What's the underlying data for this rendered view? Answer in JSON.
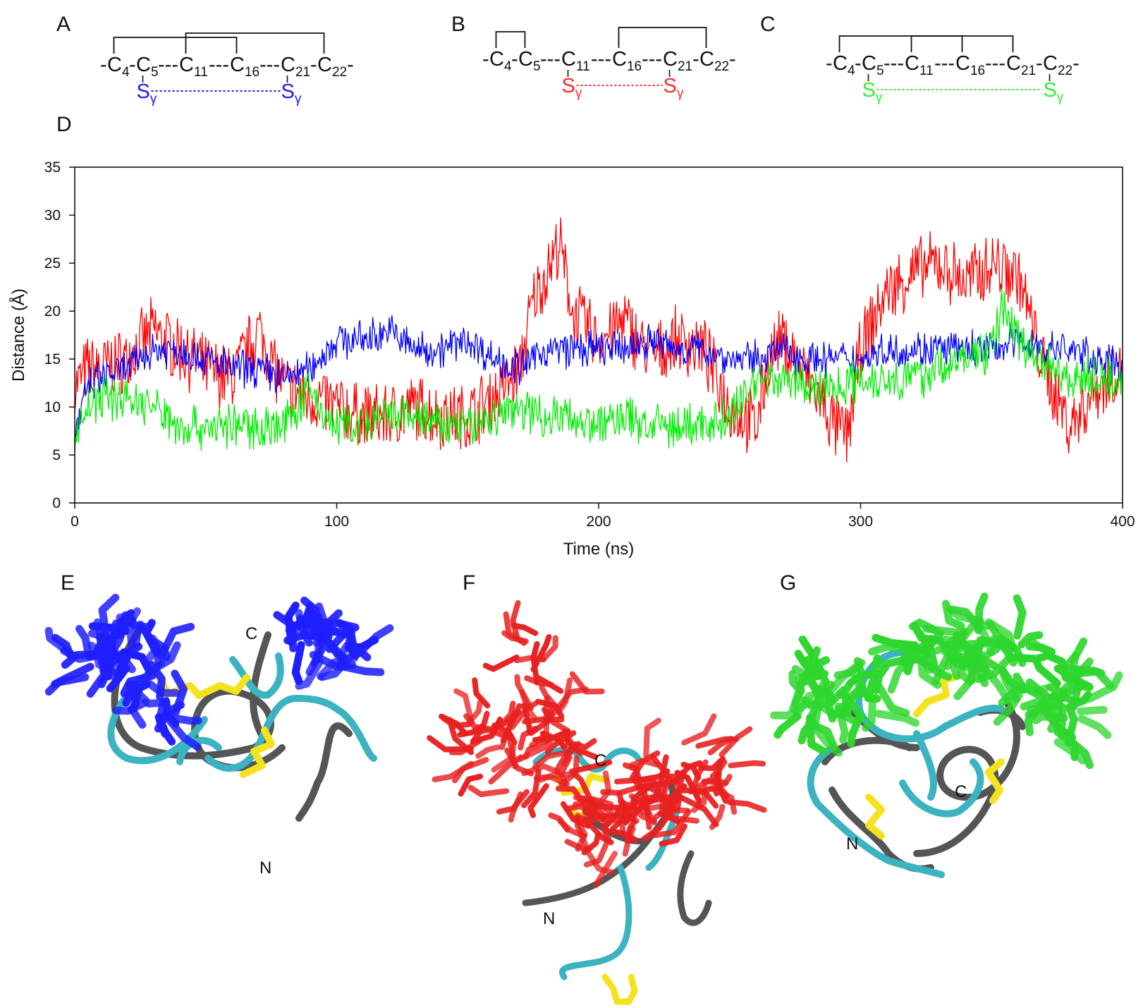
{
  "panel_labels": {
    "a": "A",
    "b": "B",
    "c": "C",
    "d": "D",
    "e": "E",
    "f": "F",
    "g": "G"
  },
  "connectivity": {
    "residue_prefix": "C",
    "residues": [
      "4",
      "5",
      "11",
      "16",
      "21",
      "22"
    ],
    "sulfur_symbol": "S",
    "sulfur_subscript": "γ",
    "dash_lead": "-",
    "dash_single": "-",
    "dash_triple": "---",
    "panels": [
      {
        "id": "A",
        "color": "#1a1aff",
        "sg_from": "5",
        "sg_to": "21",
        "bridges": [
          [
            "4",
            "16"
          ],
          [
            "11",
            "22"
          ]
        ]
      },
      {
        "id": "B",
        "color": "#ff2a2a",
        "sg_from": "11",
        "sg_to": "21",
        "bridges": [
          [
            "4",
            "5"
          ],
          [
            "16",
            "22"
          ]
        ]
      },
      {
        "id": "C",
        "color": "#33ee33",
        "sg_from": "5",
        "sg_to": "22",
        "bridges": [
          [
            "4",
            "16"
          ],
          [
            "11",
            "21"
          ]
        ]
      }
    ]
  },
  "chart_data": {
    "type": "line",
    "title": "",
    "xlabel": "Time (ns)",
    "ylabel": "Distance (Å)",
    "xlim": [
      0,
      400
    ],
    "ylim": [
      0,
      35
    ],
    "xticks": [
      0,
      100,
      200,
      300,
      400
    ],
    "yticks": [
      0,
      5,
      10,
      15,
      20,
      25,
      30,
      35
    ],
    "grid": false,
    "legend": "none",
    "series": [
      {
        "color": "#ff0000",
        "x": [
          0,
          5,
          10,
          20,
          30,
          40,
          50,
          60,
          70,
          80,
          90,
          100,
          110,
          120,
          130,
          140,
          150,
          160,
          170,
          175,
          180,
          185,
          190,
          200,
          210,
          220,
          230,
          240,
          250,
          260,
          265,
          270,
          280,
          290,
          295,
          300,
          310,
          320,
          330,
          340,
          350,
          360,
          370,
          380,
          390,
          400
        ],
        "y": [
          12,
          14,
          14,
          15,
          18,
          16,
          14,
          13,
          18,
          12,
          11,
          10,
          9,
          9,
          10,
          9,
          9,
          11,
          14,
          21,
          24,
          27,
          20,
          17,
          19,
          15,
          17,
          16,
          10,
          8,
          15,
          17,
          13,
          8,
          7,
          16,
          22,
          24,
          25,
          23,
          25,
          24,
          14,
          8,
          12,
          14
        ]
      },
      {
        "color": "#0000ff",
        "x": [
          0,
          5,
          10,
          20,
          30,
          40,
          50,
          60,
          70,
          80,
          90,
          100,
          110,
          120,
          130,
          140,
          150,
          160,
          170,
          180,
          190,
          200,
          210,
          220,
          230,
          240,
          250,
          260,
          270,
          280,
          290,
          300,
          310,
          320,
          330,
          340,
          350,
          360,
          370,
          380,
          390,
          400
        ],
        "y": [
          7,
          12,
          13,
          14,
          16,
          16,
          15,
          14,
          14,
          13,
          14,
          17,
          17,
          18,
          16,
          16,
          17,
          15,
          14,
          16,
          16,
          16,
          16,
          17,
          16,
          16,
          15,
          15,
          16,
          15,
          15,
          15,
          16,
          16,
          16,
          16,
          16,
          17,
          16,
          16,
          15,
          14
        ]
      },
      {
        "color": "#00ee00",
        "x": [
          0,
          5,
          10,
          20,
          30,
          40,
          50,
          60,
          70,
          80,
          85,
          90,
          95,
          100,
          110,
          120,
          130,
          140,
          150,
          160,
          170,
          180,
          190,
          200,
          210,
          220,
          230,
          240,
          250,
          255,
          260,
          270,
          280,
          290,
          300,
          310,
          320,
          330,
          340,
          350,
          355,
          360,
          370,
          380,
          390,
          400
        ],
        "y": [
          7,
          10,
          11,
          11,
          10,
          8,
          8,
          8,
          8,
          8,
          10,
          12,
          9,
          8,
          8,
          9,
          9,
          8,
          8,
          9,
          10,
          9,
          9,
          8,
          9,
          8,
          8,
          8,
          9,
          11,
          13,
          13,
          12,
          12,
          13,
          13,
          13,
          14,
          15,
          16,
          21,
          17,
          15,
          13,
          13,
          13
        ]
      }
    ]
  },
  "structures": {
    "n_label": "N",
    "c_label": "C",
    "panels": [
      {
        "id": "E",
        "color": "#1f1fff",
        "backbone_a": "#555555",
        "backbone_b": "#3cb3c0",
        "disulfide": "#f5e21f"
      },
      {
        "id": "F",
        "color": "#e82020",
        "backbone_a": "#555555",
        "backbone_b": "#3cb3c0",
        "disulfide": "#f5e21f"
      },
      {
        "id": "G",
        "color": "#2ed62e",
        "backbone_a": "#555555",
        "backbone_b": "#3cb3c0",
        "disulfide": "#f5e21f"
      }
    ]
  }
}
